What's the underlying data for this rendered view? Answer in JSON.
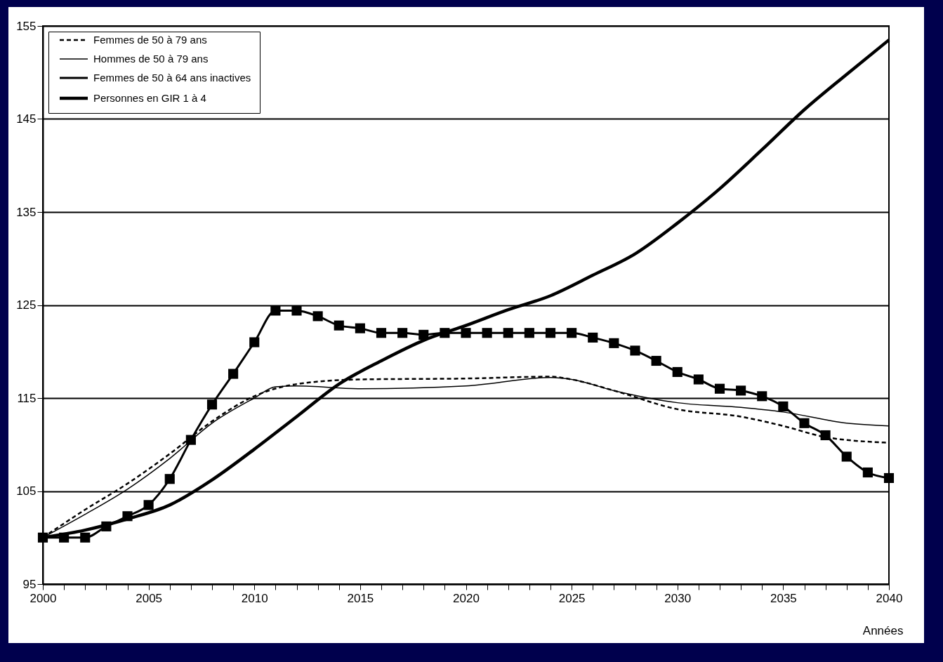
{
  "chart_data": {
    "type": "line",
    "xlabel": "Années",
    "xlim": [
      2000,
      2040
    ],
    "ylim": [
      95,
      155
    ],
    "yticks": [
      95,
      105,
      115,
      125,
      135,
      145,
      155
    ],
    "xticks": [
      2000,
      {
        "value": 2001,
        "label": null
      },
      {
        "value": 2002,
        "label": null
      },
      {
        "value": 2003,
        "label": null
      },
      {
        "value": 2004,
        "label": null
      },
      2005,
      {
        "value": 2006,
        "label": null
      },
      {
        "value": 2007,
        "label": null
      },
      {
        "value": 2008,
        "label": null
      },
      {
        "value": 2009,
        "label": null
      },
      2010,
      {
        "value": 2011,
        "label": null
      },
      {
        "value": 2012,
        "label": null
      },
      {
        "value": 2013,
        "label": null
      },
      {
        "value": 2014,
        "label": null
      },
      2015,
      {
        "value": 2016,
        "label": null
      },
      {
        "value": 2017,
        "label": null
      },
      {
        "value": 2018,
        "label": null
      },
      {
        "value": 2019,
        "label": null
      },
      2020,
      {
        "value": 2021,
        "label": null
      },
      {
        "value": 2022,
        "label": null
      },
      {
        "value": 2023,
        "label": null
      },
      {
        "value": 2024,
        "label": null
      },
      2025,
      {
        "value": 2026,
        "label": null
      },
      {
        "value": 2027,
        "label": null
      },
      {
        "value": 2028,
        "label": null
      },
      {
        "value": 2029,
        "label": null
      },
      2030,
      {
        "value": 2031,
        "label": null
      },
      {
        "value": 2032,
        "label": null
      },
      {
        "value": 2033,
        "label": null
      },
      {
        "value": 2034,
        "label": null
      },
      2035,
      {
        "value": 2036,
        "label": null
      },
      {
        "value": 2037,
        "label": null
      },
      {
        "value": 2038,
        "label": null
      },
      {
        "value": 2039,
        "label": null
      },
      2040
    ],
    "grid": "y",
    "legend": "top left",
    "series": [
      {
        "name": "Femmes de 50 à 79 ans",
        "color": "#000000",
        "line_style": "dashed",
        "x": [
          2000,
          2002,
          2004,
          2006,
          2008,
          2010,
          2012,
          2015,
          2020,
          2024,
          2025,
          2027,
          2030,
          2033,
          2035,
          2037,
          2040
        ],
        "values": [
          100,
          103,
          105.8,
          109,
          112.5,
          115.2,
          116.5,
          117,
          117.1,
          117.3,
          117,
          115.8,
          113.8,
          113,
          112,
          110.8,
          110.2
        ]
      },
      {
        "name": "Hommes de 50 à 79 ans",
        "color": "#000000",
        "line_style": "solid",
        "x": [
          2000,
          2002,
          2004,
          2006,
          2008,
          2010,
          2011,
          2012,
          2015,
          2020,
          2024,
          2025,
          2027,
          2030,
          2033,
          2035,
          2038,
          2040
        ],
        "values": [
          100,
          102.5,
          105.2,
          108.5,
          112.3,
          115,
          116.2,
          116.3,
          116,
          116.3,
          117.2,
          117,
          115.8,
          114.5,
          114,
          113.5,
          112.3,
          112
        ]
      },
      {
        "name": "Femmes de 50 à 64 ans inactives",
        "color": "#000000",
        "line_style": "solid",
        "marker": "square",
        "x": [
          2000,
          2001,
          2002,
          2003,
          2004,
          2005,
          2006,
          2007,
          2008,
          2009,
          2010,
          2011,
          2012,
          2013,
          2014,
          2015,
          2016,
          2017,
          2018,
          2019,
          2020,
          2021,
          2022,
          2023,
          2024,
          2025,
          2026,
          2027,
          2028,
          2029,
          2030,
          2031,
          2032,
          2033,
          2034,
          2035,
          2036,
          2037,
          2038,
          2039,
          2040
        ],
        "values": [
          100,
          100,
          100,
          101.2,
          102.3,
          103.5,
          106.3,
          110.5,
          114.3,
          117.6,
          121,
          124.4,
          124.4,
          123.8,
          122.8,
          122.5,
          122,
          122,
          121.8,
          122,
          122,
          122,
          122,
          122,
          122,
          122,
          121.5,
          120.9,
          120.1,
          119,
          117.8,
          117,
          116,
          115.8,
          115.2,
          114.1,
          112.3,
          111,
          108.7,
          107,
          106.4
        ]
      },
      {
        "name": "Personnes en GIR 1 à 4",
        "color": "#000000",
        "line_style": "solid",
        "x": [
          2000,
          2002,
          2004,
          2006,
          2008,
          2010,
          2012,
          2014,
          2016,
          2018,
          2020,
          2022,
          2024,
          2026,
          2028,
          2030,
          2032,
          2034,
          2036,
          2038,
          2040
        ],
        "values": [
          100,
          100.8,
          102,
          103.5,
          106.2,
          109.5,
          113,
          116.5,
          119,
          121.2,
          122.8,
          124.5,
          126,
          128.2,
          130.5,
          133.8,
          137.5,
          141.7,
          146,
          149.8,
          153.5
        ]
      }
    ]
  }
}
